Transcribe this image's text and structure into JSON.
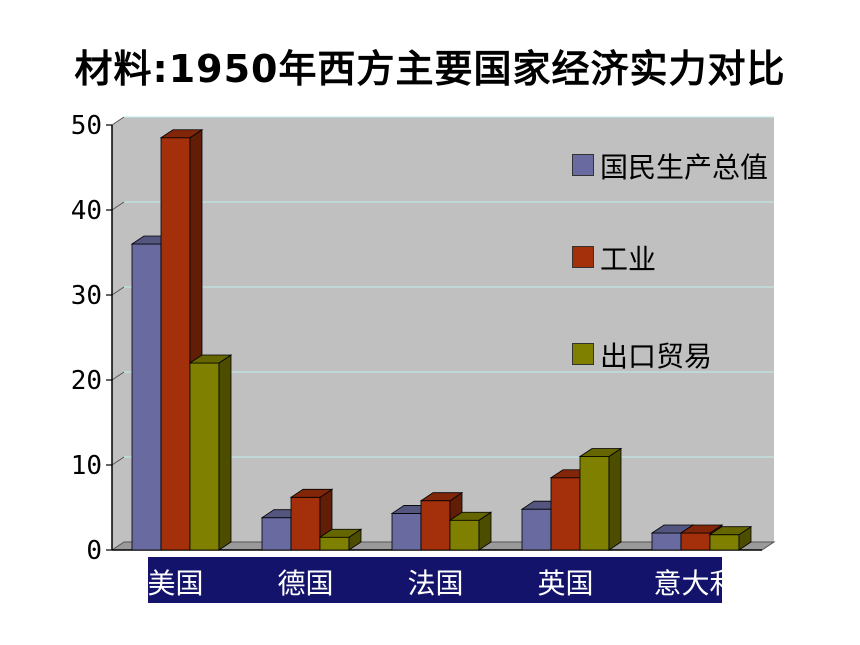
{
  "header": {
    "title": "材料:1950年西方主要国家经济实力对比"
  },
  "colors": {
    "gdp": "#696ba0",
    "industry": "#a3300b",
    "export": "#808000",
    "plot_bg": "#c0c0c0",
    "gridline": "#bfeeee",
    "category_bar": "#13136b"
  },
  "chart_data": {
    "type": "bar",
    "title": "材料:1950年西方主要国家经济实力对比",
    "xlabel": "",
    "ylabel": "",
    "categories": [
      "美国",
      "德国",
      "法国",
      "英国",
      "意大利"
    ],
    "series": [
      {
        "name": "国民生产总值",
        "values": [
          36,
          3.8,
          4.3,
          4.8,
          2
        ]
      },
      {
        "name": "工业",
        "values": [
          48.5,
          6.2,
          5.8,
          8.5,
          2
        ]
      },
      {
        "name": "出口贸易",
        "values": [
          22,
          1.5,
          3.5,
          11,
          1.8
        ]
      }
    ],
    "y_ticks": [
      "0",
      "10",
      "20",
      "30",
      "40",
      "50"
    ],
    "ylim": [
      0,
      50
    ],
    "grid": true,
    "legend_position": "right"
  }
}
